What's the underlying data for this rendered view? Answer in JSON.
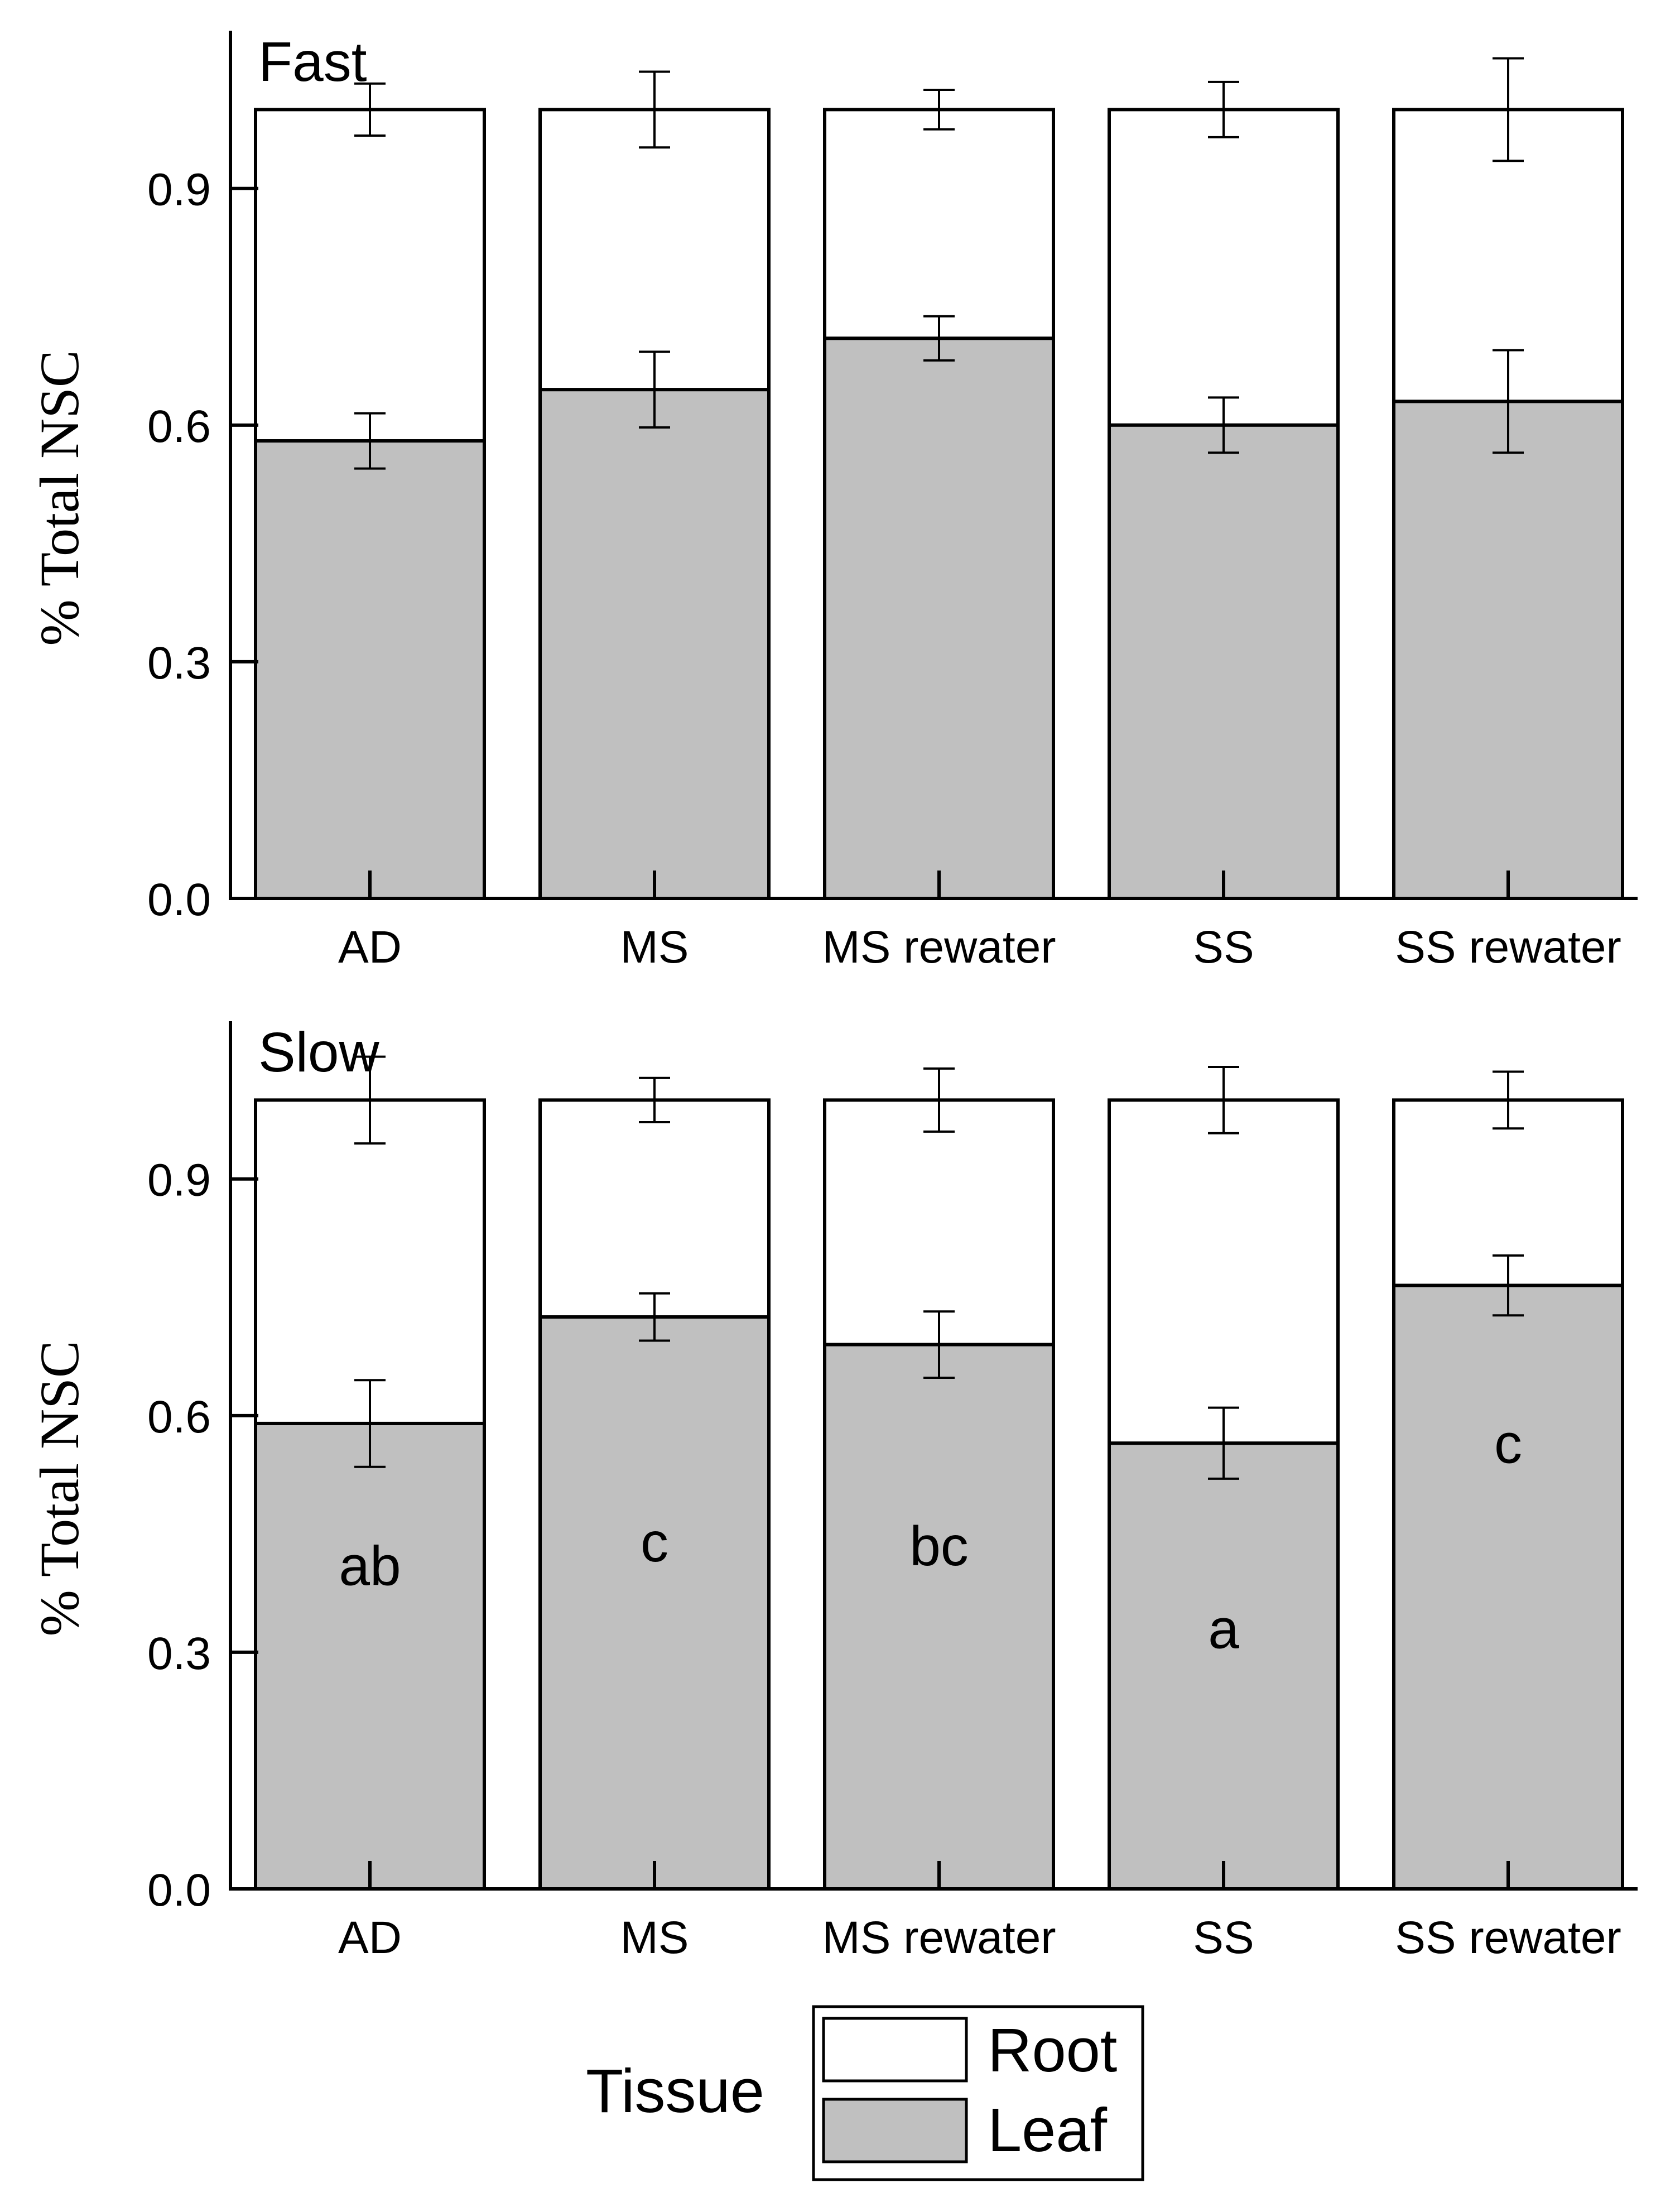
{
  "colors": {
    "root_fill": "#ffffff",
    "leaf_fill": "#c0c0c0",
    "axis": "#000000"
  },
  "chart_data": [
    {
      "type": "bar",
      "stacked": true,
      "title": "Fast",
      "xlabel": "",
      "ylabel": "% Total NSC",
      "ylim": [
        0,
        1.1
      ],
      "yticks": [
        "0.0",
        "0.3",
        "0.6",
        "0.9"
      ],
      "ytick_values": [
        0,
        0.3,
        0.6,
        0.9
      ],
      "categories": [
        "AD",
        "MS",
        "MS rewater",
        "SS",
        "SS rewater"
      ],
      "series": [
        {
          "name": "Leaf",
          "values": [
            0.58,
            0.645,
            0.71,
            0.6,
            0.63
          ],
          "errors": [
            0.035,
            0.048,
            0.028,
            0.035,
            0.065
          ]
        },
        {
          "name": "Root",
          "values": [
            0.42,
            0.355,
            0.29,
            0.4,
            0.37
          ],
          "errors": [
            0.033,
            0.048,
            0.025,
            0.035,
            0.065
          ]
        }
      ],
      "annotations": []
    },
    {
      "type": "bar",
      "stacked": true,
      "title": "Slow",
      "xlabel": "",
      "ylabel": "% Total NSC",
      "ylim": [
        0,
        1.1
      ],
      "yticks": [
        "0.0",
        "0.3",
        "0.6",
        "0.9"
      ],
      "ytick_values": [
        0,
        0.3,
        0.6,
        0.9
      ],
      "categories": [
        "AD",
        "MS",
        "MS rewater",
        "SS",
        "SS rewater"
      ],
      "series": [
        {
          "name": "Leaf",
          "values": [
            0.59,
            0.725,
            0.69,
            0.565,
            0.765
          ],
          "errors": [
            0.055,
            0.03,
            0.042,
            0.045,
            0.038
          ]
        },
        {
          "name": "Root",
          "values": [
            0.41,
            0.275,
            0.31,
            0.435,
            0.235
          ],
          "errors": [
            0.055,
            0.028,
            0.04,
            0.042,
            0.036
          ]
        }
      ],
      "annotations": [
        {
          "category": "AD",
          "text": "ab",
          "y": 0.41
        },
        {
          "category": "MS",
          "text": "c",
          "y": 0.44
        },
        {
          "category": "MS rewater",
          "text": "bc",
          "y": 0.435
        },
        {
          "category": "SS",
          "text": "a",
          "y": 0.33
        },
        {
          "category": "SS rewater",
          "text": "c",
          "y": 0.565
        }
      ]
    }
  ],
  "legend": {
    "title": "Tissue",
    "items": [
      {
        "label": "Root",
        "color": "#ffffff"
      },
      {
        "label": "Leaf",
        "color": "#c0c0c0"
      }
    ]
  }
}
